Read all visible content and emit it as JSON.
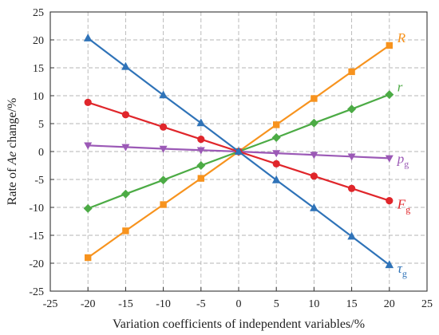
{
  "chart_data": {
    "type": "line",
    "xlabel": "Variation coefficients of independent variables/%",
    "ylabel": "Rate of Ae change/%",
    "xlim": [
      -25,
      25
    ],
    "ylim": [
      -25,
      25
    ],
    "xticks": [
      -25,
      -20,
      -15,
      -10,
      -5,
      0,
      5,
      10,
      15,
      20,
      25
    ],
    "yticks": [
      -25,
      -20,
      -15,
      -10,
      -5,
      0,
      5,
      10,
      15,
      20,
      25
    ],
    "grid": true,
    "x": [
      -20,
      -15,
      -10,
      -5,
      0,
      5,
      10,
      15,
      20
    ],
    "series": [
      {
        "name": "R",
        "subscript": "",
        "color": "#f7931e",
        "marker": "square",
        "values": [
          -19.0,
          -14.2,
          -9.5,
          -4.8,
          0,
          4.8,
          9.5,
          14.3,
          19.0
        ]
      },
      {
        "name": "r",
        "subscript": "",
        "color": "#4cab45",
        "marker": "diamond",
        "values": [
          -10.2,
          -7.6,
          -5.1,
          -2.5,
          0,
          2.5,
          5.1,
          7.6,
          10.2
        ]
      },
      {
        "name": "p",
        "subscript": "g",
        "color": "#9b59b6",
        "marker": "triangle-down",
        "values": [
          1.1,
          0.8,
          0.5,
          0.25,
          0,
          -0.3,
          -0.6,
          -0.9,
          -1.2
        ]
      },
      {
        "name": "F",
        "subscript": "g",
        "color": "#e0262b",
        "marker": "circle",
        "values": [
          8.8,
          6.6,
          4.4,
          2.2,
          0,
          -2.2,
          -4.4,
          -6.6,
          -8.8
        ]
      },
      {
        "name": "τ",
        "subscript": "g",
        "color": "#2f73b8",
        "marker": "triangle-up",
        "values": [
          20.3,
          15.2,
          10.1,
          5.1,
          0,
          -5.1,
          -10.1,
          -15.2,
          -20.3
        ]
      }
    ]
  }
}
